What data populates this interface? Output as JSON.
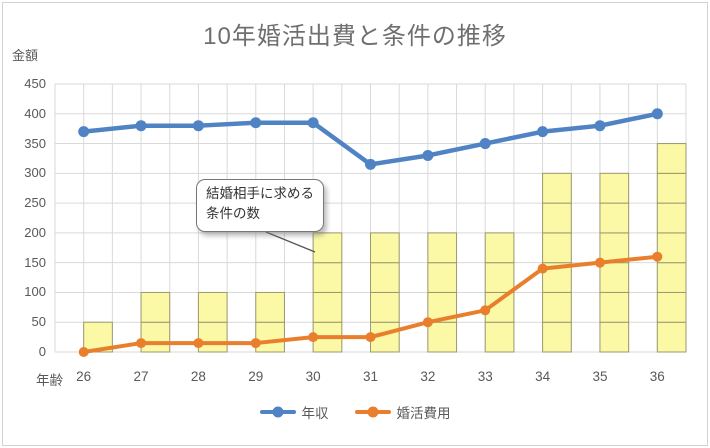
{
  "title": "10年婚活出費と条件の推移",
  "y_axis_label": "金額",
  "x_axis_label": "年齢",
  "annotation": {
    "lines": [
      "結婚相手に求める",
      "条件の数"
    ]
  },
  "legend": {
    "items": [
      {
        "label": "年収",
        "color": "#4f83c4"
      },
      {
        "label": "婚活費用",
        "color": "#e97f2d"
      }
    ]
  },
  "chart_data": {
    "type": "combo",
    "title": "10年婚活出費と条件の推移",
    "xlabel": "年齢",
    "ylabel": "金額",
    "categories": [
      26,
      27,
      28,
      29,
      30,
      31,
      32,
      33,
      34,
      35,
      36
    ],
    "series": [
      {
        "name": "年収",
        "type": "line",
        "color": "#4f83c4",
        "values": [
          370,
          380,
          380,
          385,
          385,
          315,
          330,
          350,
          370,
          380,
          400
        ]
      },
      {
        "name": "婚活費用",
        "type": "line",
        "color": "#e97f2d",
        "values": [
          0,
          15,
          15,
          15,
          25,
          25,
          50,
          70,
          140,
          150,
          160
        ]
      },
      {
        "name": "結婚相手に求める条件の数",
        "type": "bar",
        "color": "#fbf8a6",
        "border_color": "#9c996f",
        "values": [
          50,
          100,
          100,
          100,
          200,
          200,
          200,
          200,
          300,
          300,
          350
        ]
      }
    ],
    "bar_block_unit": 50,
    "ylim": [
      0,
      450
    ],
    "ytick_step": 50,
    "grid": "both",
    "gridline_color": "#d9d9d9",
    "legend_position": "bottom"
  }
}
